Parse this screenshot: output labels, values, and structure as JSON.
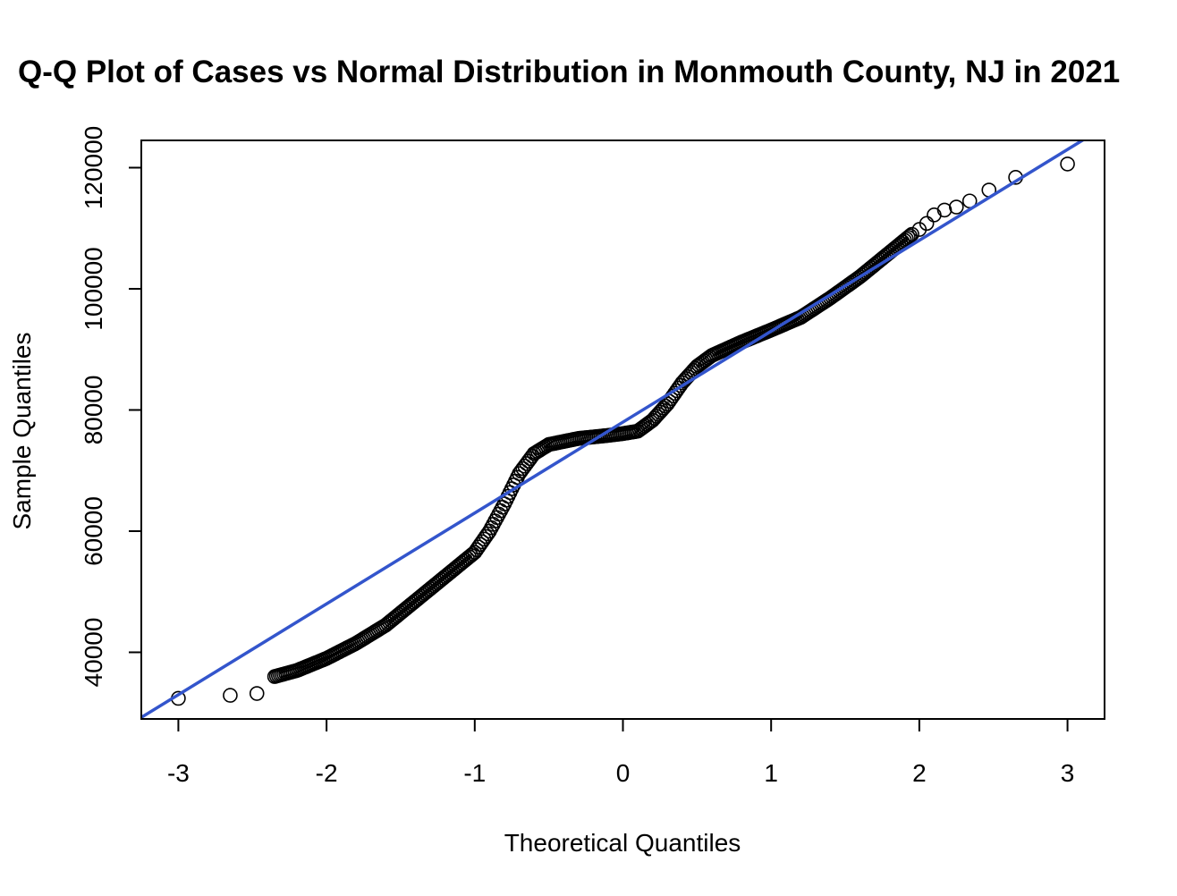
{
  "chart_data": {
    "type": "scatter",
    "title": "Q-Q Plot of Cases vs Normal Distribution in Monmouth County, NJ in 2021",
    "xlabel": "Theoretical Quantiles",
    "ylabel": "Sample Quantiles",
    "xlim": [
      -3.25,
      3.25
    ],
    "ylim": [
      29000,
      124500
    ],
    "x_ticks": [
      -3,
      -2,
      -1,
      0,
      1,
      2,
      3
    ],
    "x_tick_labels": [
      "-3",
      "-2",
      "-1",
      "0",
      "1",
      "2",
      "3"
    ],
    "y_ticks": [
      40000,
      60000,
      80000,
      100000,
      120000
    ],
    "y_tick_labels": [
      "40000",
      "60000",
      "80000",
      "100000",
      "120000"
    ],
    "grid": false,
    "legend": "none",
    "reference_line": {
      "intercept": 78000,
      "slope": 15000,
      "color": "#3355cc"
    },
    "point_style": "open-circle",
    "curve_knots": [
      [
        -2.35,
        36000
      ],
      [
        -2.2,
        37000
      ],
      [
        -2.0,
        39000
      ],
      [
        -1.8,
        41500
      ],
      [
        -1.6,
        44500
      ],
      [
        -1.4,
        48500
      ],
      [
        -1.2,
        52500
      ],
      [
        -1.0,
        56500
      ],
      [
        -0.9,
        60000
      ],
      [
        -0.8,
        64500
      ],
      [
        -0.7,
        69500
      ],
      [
        -0.6,
        72800
      ],
      [
        -0.5,
        74300
      ],
      [
        -0.3,
        75300
      ],
      [
        -0.1,
        75800
      ],
      [
        0.0,
        76100
      ],
      [
        0.1,
        76500
      ],
      [
        0.2,
        78300
      ],
      [
        0.3,
        81000
      ],
      [
        0.4,
        84500
      ],
      [
        0.5,
        87200
      ],
      [
        0.6,
        89000
      ],
      [
        0.8,
        91200
      ],
      [
        1.0,
        93200
      ],
      [
        1.2,
        95300
      ],
      [
        1.4,
        98500
      ],
      [
        1.6,
        102000
      ],
      [
        1.8,
        106000
      ],
      [
        1.95,
        109000
      ]
    ],
    "tail_points": [
      {
        "x": -3.0,
        "y": 32400
      },
      {
        "x": -2.65,
        "y": 32900
      },
      {
        "x": -2.47,
        "y": 33200
      },
      {
        "x": 2.0,
        "y": 109800
      },
      {
        "x": 2.05,
        "y": 110800
      },
      {
        "x": 2.1,
        "y": 112200
      },
      {
        "x": 2.17,
        "y": 113000
      },
      {
        "x": 2.25,
        "y": 113500
      },
      {
        "x": 2.34,
        "y": 114500
      },
      {
        "x": 2.47,
        "y": 116300
      },
      {
        "x": 2.65,
        "y": 118400
      },
      {
        "x": 3.0,
        "y": 120600
      }
    ]
  }
}
